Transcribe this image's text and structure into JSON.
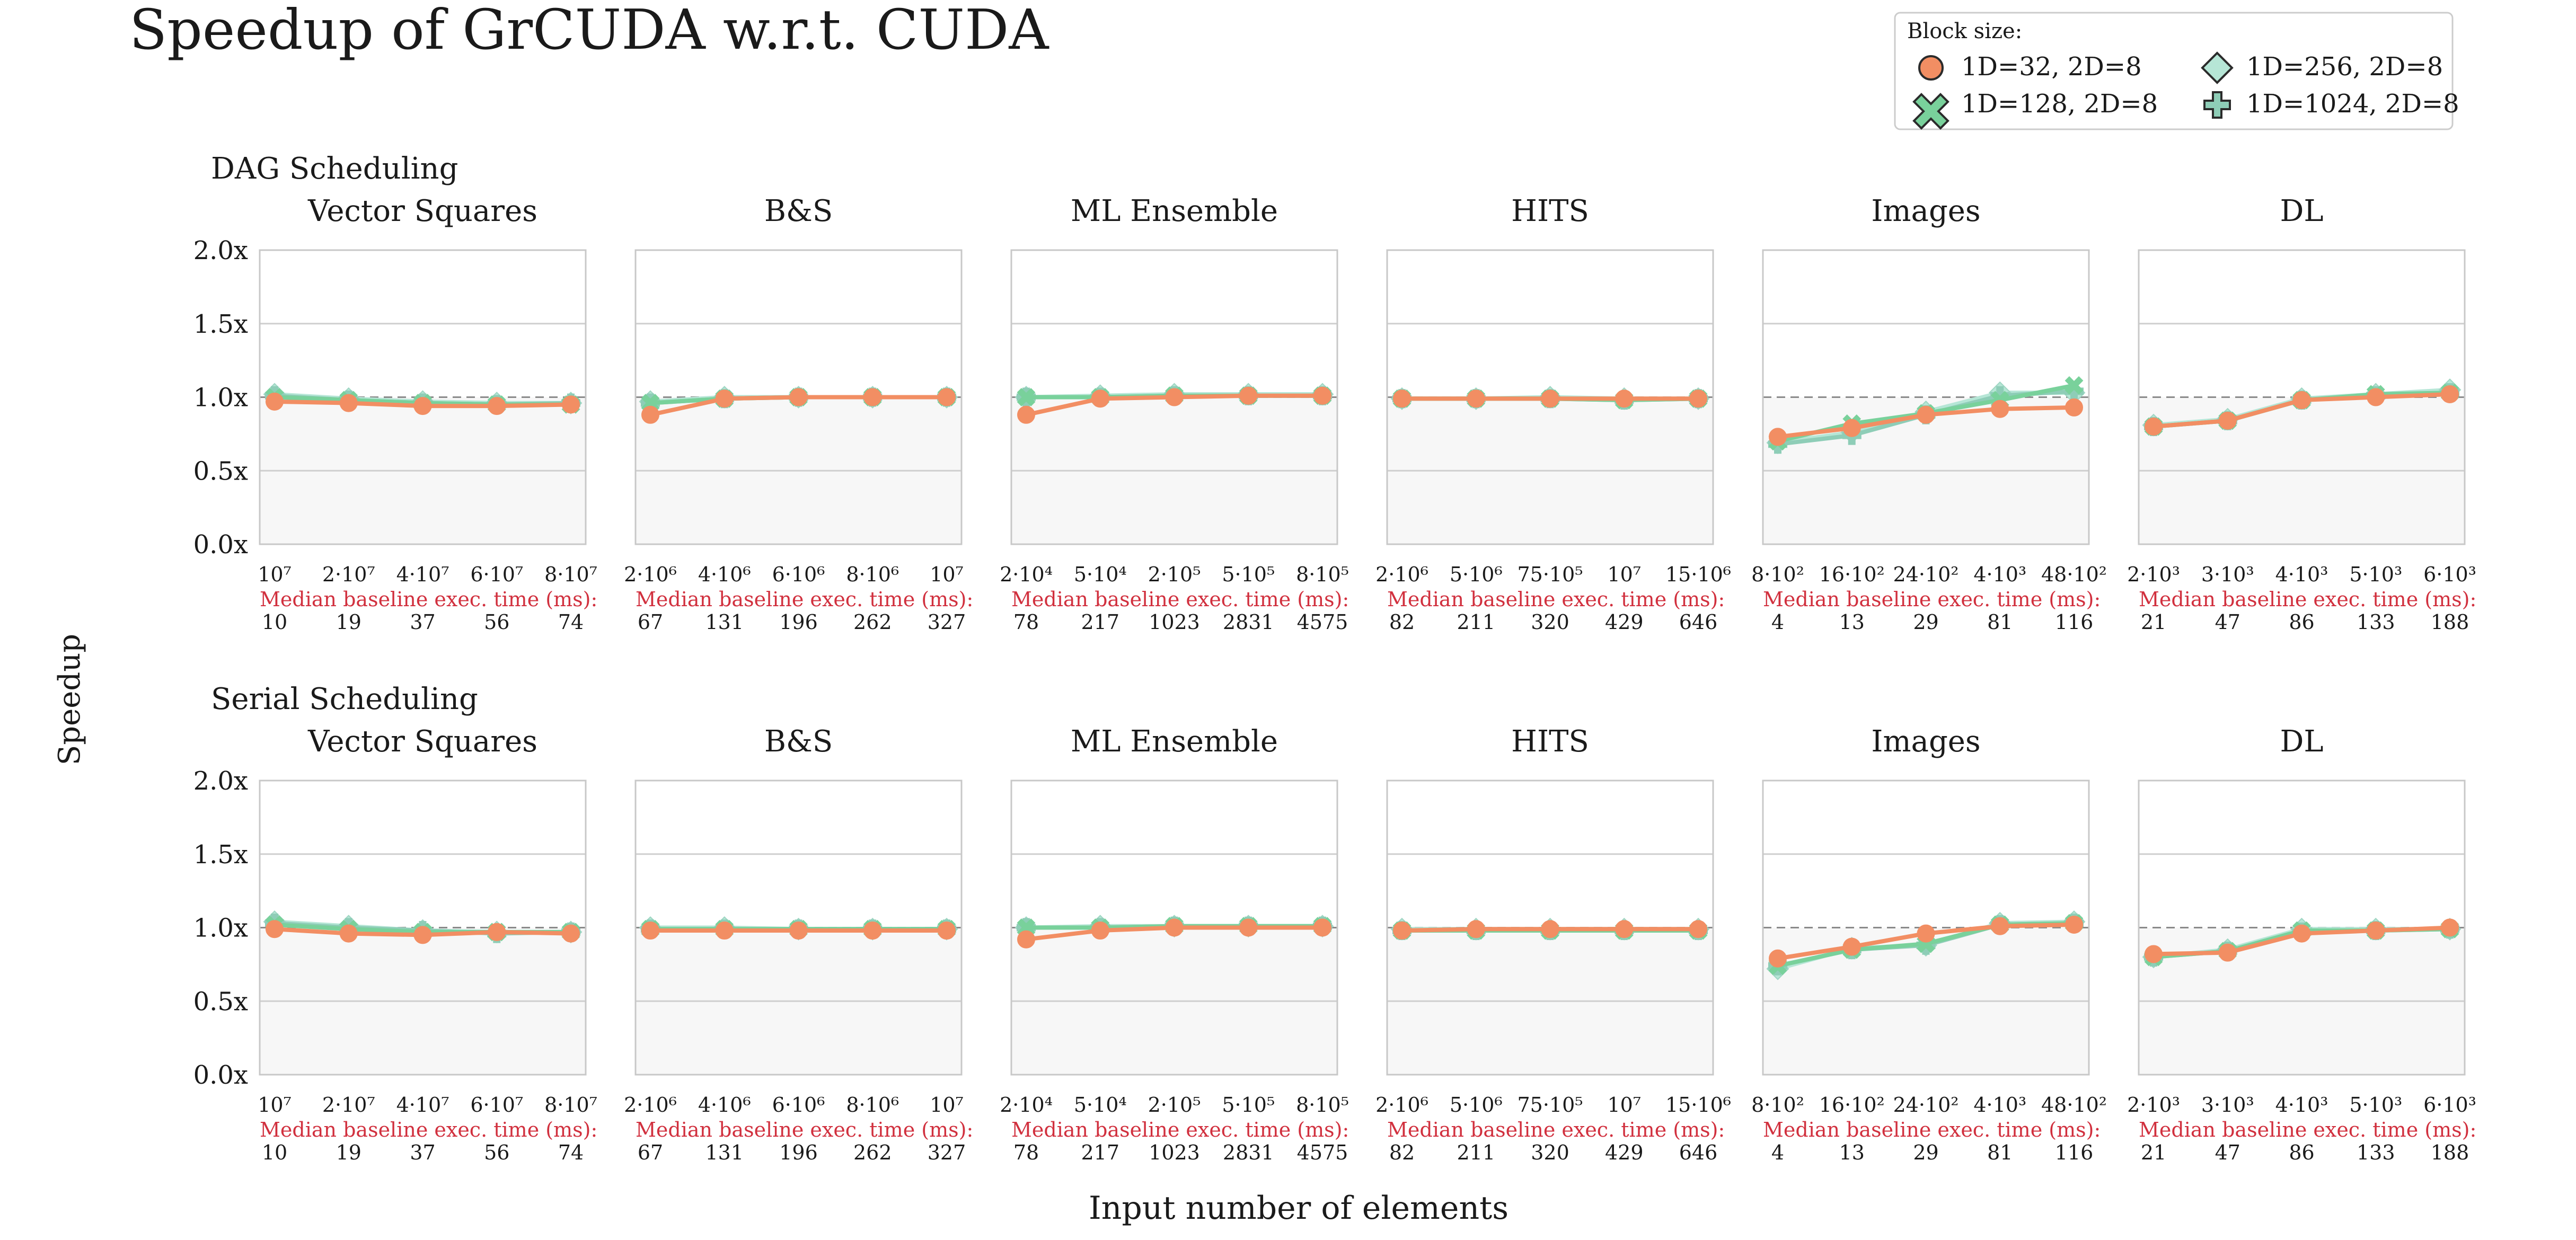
{
  "figure": {
    "title": "Speedup of GrCUDA w.r.t. CUDA",
    "ylabel": "Speedup",
    "xlabel": "Input number of elements",
    "baseline_label": "Median baseline exec. time (ms):"
  },
  "legend": {
    "title": "Block size:",
    "entries": [
      {
        "label": "1D=32, 2D=8",
        "marker": "circle",
        "color": "#f28e63"
      },
      {
        "label": "1D=128, 2D=8",
        "marker": "x",
        "color": "#79d19b"
      },
      {
        "label": "1D=256, 2D=8",
        "marker": "diamond",
        "color": "#b6e6d6"
      },
      {
        "label": "1D=1024, 2D=8",
        "marker": "plus",
        "color": "#8ecdb7"
      }
    ]
  },
  "chart_data": {
    "type": "line",
    "ylim": [
      0,
      2
    ],
    "yticks": [
      "0.0x",
      "0.5x",
      "1.0x",
      "1.5x",
      "2.0x"
    ],
    "reference_line": 1.0,
    "grid": true,
    "rows": [
      {
        "title": "DAG Scheduling",
        "panels": [
          {
            "title": "Vector Squares",
            "xticks": [
              "10⁷",
              "2·10⁷",
              "4·10⁷",
              "6·10⁷",
              "8·10⁷"
            ],
            "baseline_ms": [
              "10",
              "19",
              "37",
              "56",
              "74"
            ],
            "series": [
              {
                "name": "1D=32, 2D=8",
                "values": [
                  0.97,
                  0.96,
                  0.94,
                  0.94,
                  0.95
                ]
              },
              {
                "name": "1D=128, 2D=8",
                "values": [
                  1.0,
                  0.98,
                  0.96,
                  0.95,
                  0.95
                ]
              },
              {
                "name": "1D=256, 2D=8",
                "values": [
                  1.02,
                  0.99,
                  0.97,
                  0.96,
                  0.96
                ]
              },
              {
                "name": "1D=1024, 2D=8",
                "values": [
                  1.01,
                  0.98,
                  0.96,
                  0.95,
                  0.96
                ]
              }
            ]
          },
          {
            "title": "B&S",
            "xticks": [
              "2·10⁶",
              "4·10⁶",
              "6·10⁶",
              "8·10⁶",
              "10⁷"
            ],
            "baseline_ms": [
              "67",
              "131",
              "196",
              "262",
              "327"
            ],
            "series": [
              {
                "name": "1D=32, 2D=8",
                "values": [
                  0.88,
                  0.99,
                  1.0,
                  1.0,
                  1.0
                ]
              },
              {
                "name": "1D=128, 2D=8",
                "values": [
                  0.96,
                  0.99,
                  1.0,
                  1.0,
                  1.0
                ]
              },
              {
                "name": "1D=256, 2D=8",
                "values": [
                  0.97,
                  1.0,
                  1.0,
                  1.0,
                  1.0
                ]
              },
              {
                "name": "1D=1024, 2D=8",
                "values": [
                  0.96,
                  0.99,
                  1.0,
                  1.0,
                  1.0
                ]
              }
            ]
          },
          {
            "title": "ML Ensemble",
            "xticks": [
              "2·10⁴",
              "5·10⁴",
              "2·10⁵",
              "5·10⁵",
              "8·10⁵"
            ],
            "baseline_ms": [
              "78",
              "217",
              "1023",
              "2831",
              "4575"
            ],
            "series": [
              {
                "name": "1D=32, 2D=8",
                "values": [
                  0.88,
                  0.99,
                  1.0,
                  1.01,
                  1.01
                ]
              },
              {
                "name": "1D=128, 2D=8",
                "values": [
                  1.0,
                  1.0,
                  1.01,
                  1.01,
                  1.01
                ]
              },
              {
                "name": "1D=256, 2D=8",
                "values": [
                  1.0,
                  1.01,
                  1.02,
                  1.02,
                  1.02
                ]
              },
              {
                "name": "1D=1024, 2D=8",
                "values": [
                  1.0,
                  1.0,
                  1.01,
                  1.01,
                  1.01
                ]
              }
            ]
          },
          {
            "title": "HITS",
            "xticks": [
              "2·10⁶",
              "5·10⁶",
              "75·10⁵",
              "10⁷",
              "15·10⁶"
            ],
            "baseline_ms": [
              "82",
              "211",
              "320",
              "429",
              "646"
            ],
            "series": [
              {
                "name": "1D=32, 2D=8",
                "values": [
                  0.99,
                  0.99,
                  0.99,
                  0.99,
                  0.99
                ]
              },
              {
                "name": "1D=128, 2D=8",
                "values": [
                  0.99,
                  0.99,
                  0.99,
                  0.98,
                  0.99
                ]
              },
              {
                "name": "1D=256, 2D=8",
                "values": [
                  0.99,
                  0.99,
                  1.0,
                  0.99,
                  0.99
                ]
              },
              {
                "name": "1D=1024, 2D=8",
                "values": [
                  0.99,
                  0.99,
                  0.99,
                  0.98,
                  0.99
                ]
              }
            ]
          },
          {
            "title": "Images",
            "xticks": [
              "8·10²",
              "16·10²",
              "24·10²",
              "4·10³",
              "48·10²"
            ],
            "baseline_ms": [
              "4",
              "13",
              "29",
              "81",
              "116"
            ],
            "series": [
              {
                "name": "1D=32, 2D=8",
                "values": [
                  0.73,
                  0.79,
                  0.88,
                  0.92,
                  0.93
                ]
              },
              {
                "name": "1D=128, 2D=8",
                "values": [
                  0.7,
                  0.82,
                  0.89,
                  0.98,
                  1.08
                ]
              },
              {
                "name": "1D=256, 2D=8",
                "values": [
                  0.69,
                  0.76,
                  0.9,
                  1.03,
                  1.03
                ]
              },
              {
                "name": "1D=1024, 2D=8",
                "values": [
                  0.68,
                  0.74,
                  0.88,
                  1.01,
                  1.04
                ]
              }
            ]
          },
          {
            "title": "DL",
            "xticks": [
              "2·10³",
              "3·10³",
              "4·10³",
              "5·10³",
              "6·10³"
            ],
            "baseline_ms": [
              "21",
              "47",
              "86",
              "133",
              "188"
            ],
            "series": [
              {
                "name": "1D=32, 2D=8",
                "values": [
                  0.8,
                  0.84,
                  0.98,
                  1.0,
                  1.02
                ]
              },
              {
                "name": "1D=128, 2D=8",
                "values": [
                  0.8,
                  0.84,
                  0.98,
                  1.02,
                  1.03
                ]
              },
              {
                "name": "1D=256, 2D=8",
                "values": [
                  0.81,
                  0.85,
                  0.99,
                  1.02,
                  1.05
                ]
              },
              {
                "name": "1D=1024, 2D=8",
                "values": [
                  0.8,
                  0.84,
                  0.98,
                  1.01,
                  1.03
                ]
              }
            ]
          }
        ]
      },
      {
        "title": "Serial Scheduling",
        "panels": [
          {
            "title": "Vector Squares",
            "xticks": [
              "10⁷",
              "2·10⁷",
              "4·10⁷",
              "6·10⁷",
              "8·10⁷"
            ],
            "baseline_ms": [
              "10",
              "19",
              "37",
              "56",
              "74"
            ],
            "series": [
              {
                "name": "1D=32, 2D=8",
                "values": [
                  0.99,
                  0.96,
                  0.95,
                  0.97,
                  0.96
                ]
              },
              {
                "name": "1D=128, 2D=8",
                "values": [
                  1.02,
                  0.99,
                  0.97,
                  0.97,
                  0.97
                ]
              },
              {
                "name": "1D=256, 2D=8",
                "values": [
                  1.04,
                  1.01,
                  0.98,
                  0.97,
                  0.97
                ]
              },
              {
                "name": "1D=1024, 2D=8",
                "values": [
                  1.03,
                  1.0,
                  0.98,
                  0.96,
                  0.97
                ]
              }
            ]
          },
          {
            "title": "B&S",
            "xticks": [
              "2·10⁶",
              "4·10⁶",
              "6·10⁶",
              "8·10⁶",
              "10⁷"
            ],
            "baseline_ms": [
              "67",
              "131",
              "196",
              "262",
              "327"
            ],
            "series": [
              {
                "name": "1D=32, 2D=8",
                "values": [
                  0.98,
                  0.98,
                  0.98,
                  0.98,
                  0.98
                ]
              },
              {
                "name": "1D=128, 2D=8",
                "values": [
                  0.99,
                  0.99,
                  0.99,
                  0.99,
                  0.99
                ]
              },
              {
                "name": "1D=256, 2D=8",
                "values": [
                  1.0,
                  1.0,
                  0.99,
                  0.99,
                  0.99
                ]
              },
              {
                "name": "1D=1024, 2D=8",
                "values": [
                  0.99,
                  0.99,
                  0.99,
                  0.99,
                  0.99
                ]
              }
            ]
          },
          {
            "title": "ML Ensemble",
            "xticks": [
              "2·10⁴",
              "5·10⁴",
              "2·10⁵",
              "5·10⁵",
              "8·10⁵"
            ],
            "baseline_ms": [
              "78",
              "217",
              "1023",
              "2831",
              "4575"
            ],
            "series": [
              {
                "name": "1D=32, 2D=8",
                "values": [
                  0.92,
                  0.98,
                  1.0,
                  1.0,
                  1.0
                ]
              },
              {
                "name": "1D=128, 2D=8",
                "values": [
                  1.0,
                  1.0,
                  1.01,
                  1.01,
                  1.01
                ]
              },
              {
                "name": "1D=256, 2D=8",
                "values": [
                  1.0,
                  1.01,
                  1.01,
                  1.01,
                  1.01
                ]
              },
              {
                "name": "1D=1024, 2D=8",
                "values": [
                  1.0,
                  1.0,
                  1.01,
                  1.01,
                  1.01
                ]
              }
            ]
          },
          {
            "title": "HITS",
            "xticks": [
              "2·10⁶",
              "5·10⁶",
              "75·10⁵",
              "10⁷",
              "15·10⁶"
            ],
            "baseline_ms": [
              "82",
              "211",
              "320",
              "429",
              "646"
            ],
            "series": [
              {
                "name": "1D=32, 2D=8",
                "values": [
                  0.98,
                  0.99,
                  0.99,
                  0.99,
                  0.99
                ]
              },
              {
                "name": "1D=128, 2D=8",
                "values": [
                  0.98,
                  0.98,
                  0.98,
                  0.98,
                  0.98
                ]
              },
              {
                "name": "1D=256, 2D=8",
                "values": [
                  0.99,
                  0.99,
                  0.99,
                  0.99,
                  0.99
                ]
              },
              {
                "name": "1D=1024, 2D=8",
                "values": [
                  0.98,
                  0.98,
                  0.98,
                  0.98,
                  0.98
                ]
              }
            ]
          },
          {
            "title": "Images",
            "xticks": [
              "8·10²",
              "16·10²",
              "24·10²",
              "4·10³",
              "48·10²"
            ],
            "baseline_ms": [
              "4",
              "13",
              "29",
              "81",
              "116"
            ],
            "series": [
              {
                "name": "1D=32, 2D=8",
                "values": [
                  0.79,
                  0.87,
                  0.96,
                  1.01,
                  1.02
                ]
              },
              {
                "name": "1D=128, 2D=8",
                "values": [
                  0.74,
                  0.85,
                  0.89,
                  1.02,
                  1.03
                ]
              },
              {
                "name": "1D=256, 2D=8",
                "values": [
                  0.72,
                  0.86,
                  0.88,
                  1.03,
                  1.04
                ]
              },
              {
                "name": "1D=1024, 2D=8",
                "values": [
                  0.74,
                  0.85,
                  0.88,
                  1.02,
                  1.03
                ]
              }
            ]
          },
          {
            "title": "DL",
            "xticks": [
              "2·10³",
              "3·10³",
              "4·10³",
              "5·10³",
              "6·10³"
            ],
            "baseline_ms": [
              "21",
              "47",
              "86",
              "133",
              "188"
            ],
            "series": [
              {
                "name": "1D=32, 2D=8",
                "values": [
                  0.82,
                  0.83,
                  0.96,
                  0.98,
                  1.0
                ]
              },
              {
                "name": "1D=128, 2D=8",
                "values": [
                  0.8,
                  0.84,
                  0.98,
                  0.98,
                  0.99
                ]
              },
              {
                "name": "1D=256, 2D=8",
                "values": [
                  0.8,
                  0.85,
                  0.99,
                  0.99,
                  0.99
                ]
              },
              {
                "name": "1D=1024, 2D=8",
                "values": [
                  0.8,
                  0.84,
                  0.97,
                  0.98,
                  0.99
                ]
              }
            ]
          }
        ]
      }
    ]
  }
}
